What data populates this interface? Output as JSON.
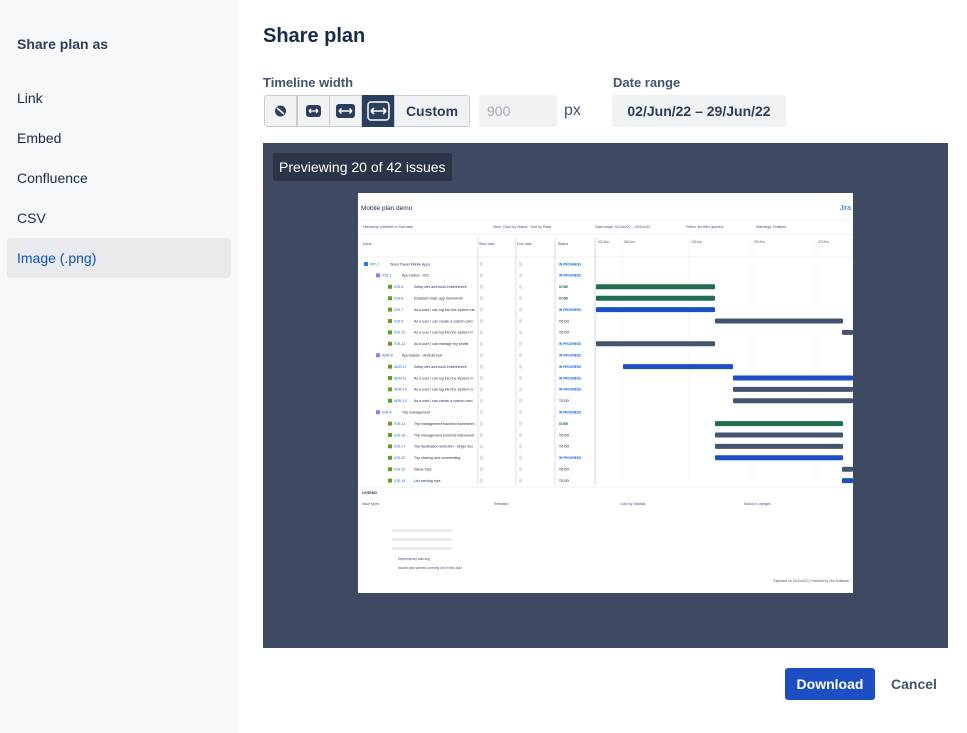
{
  "sidebar": {
    "title": "Share plan as",
    "options": [
      "Link",
      "Embed",
      "Confluence",
      "CSV",
      "Image (.png)"
    ],
    "selected": 4
  },
  "header": {
    "title": "Share plan"
  },
  "timeline": {
    "label": "Timeline width",
    "custom": "Custom",
    "width_placeholder": "900",
    "unit": "px"
  },
  "date_range": {
    "label": "Date range",
    "value": "02/Jun/22 – 29/Jun/22"
  },
  "preview": {
    "badge": "Previewing 20 of 42 issues",
    "image": {
      "title": "Mobile plan demo",
      "brand": "Jira",
      "info": [
        "Hierarchy: Initiative to Sub-task",
        "View: Color by Status · Sort by Rank",
        "Date range: 02/Jun/22 – 29/Jun/22",
        "Filters: No filter applied",
        "Warnings: Enabled"
      ],
      "columns": [
        "Issue",
        "Start date",
        "Due date",
        "Status"
      ],
      "dates": [
        "02/Jun",
        "06/Jun",
        "13/Jun",
        "20/Jun",
        "27/Jun"
      ],
      "rows": [
        {
          "key": "IPP-1",
          "summary": "Team Travel Mobile Apps",
          "status": "IN PROGRESS"
        },
        {
          "key": "IOS-1",
          "summary": "App basics - iOS",
          "status": "IN PROGRESS"
        },
        {
          "key": "IOS-6",
          "summary": "Setup dev and build environment",
          "status": "DONE"
        },
        {
          "key": "IOS-8",
          "summary": "Establish basic app framework",
          "status": "DONE"
        },
        {
          "key": "IOS-7",
          "summary": "As a user I can log into the system via",
          "status": "IN PROGRESS"
        },
        {
          "key": "IOS-9",
          "summary": "As a user I can create a custom card",
          "status": "TO DO"
        },
        {
          "key": "IOS-10",
          "summary": "As a user I can log into the system vi",
          "status": "TO DO"
        },
        {
          "key": "IOS-12",
          "summary": "As a user I can manage my profile",
          "status": "IN PROGRESS"
        },
        {
          "key": "ADR-8",
          "summary": "App Basics - Android test",
          "status": "IN PROGRESS"
        },
        {
          "key": "ADR-17",
          "summary": "Setup dev and build environment",
          "status": "IN PROGRESS"
        },
        {
          "key": "ADR-11",
          "summary": "As a user I can log into the system vi",
          "status": "IN PROGRESS"
        },
        {
          "key": "ADR-13",
          "summary": "As a user I can log into the system vi",
          "status": "IN PROGRESS"
        },
        {
          "key": "ADR-14",
          "summary": "As a user I can create a custom card",
          "status": "TO DO"
        },
        {
          "key": "IOS-4",
          "summary": "Trip management",
          "status": "IN PROGRESS"
        },
        {
          "key": "IOS-14",
          "summary": "Trip management backend framework",
          "status": "DONE"
        },
        {
          "key": "IOS-16",
          "summary": "Trip management frontend framework",
          "status": "TO DO"
        },
        {
          "key": "IOS-17",
          "summary": "Trip destination selection - single des",
          "status": "TO DO"
        },
        {
          "key": "IOS-20",
          "summary": "Trip sharing and commenting",
          "status": "IN PROGRESS"
        },
        {
          "key": "IOS-22",
          "summary": "Name trips",
          "status": "TO DO"
        },
        {
          "key": "IOS-18",
          "summary": "List existing trips",
          "status": "TO DO"
        }
      ],
      "legend": {
        "title": "LEGEND",
        "items": [
          "Issue types",
          "Releases",
          "Color by (Status)",
          "Status in changes",
          "Dependency warning",
          "Issues and sprints currently not in this plan"
        ]
      },
      "footer": "Exported on 02/Jun/22 | Powered by Jira Software"
    }
  },
  "actions": {
    "download": "Download",
    "cancel": "Cancel"
  }
}
